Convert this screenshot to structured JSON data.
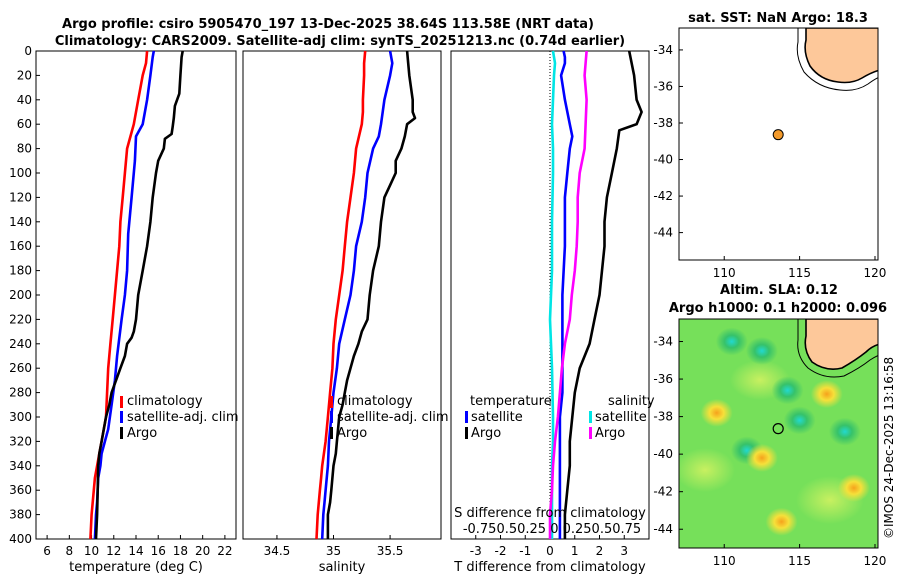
{
  "title": {
    "line1": "Argo profile: csiro 5905470_197 13-Dec-2025 38.64S 113.58E (NRT data)",
    "line2": "Climatology: CARS2009. Satellite-adj clim: synTS_20251213.nc (0.74d earlier)"
  },
  "stamp": "©IMOS 24-Dec-2025 13:16:58",
  "colors": {
    "climatology": "#ff0000",
    "satellite": "#0000ff",
    "argo": "#000000",
    "sat_salinity": "#00e5e5",
    "argo_salinity": "#ff00ff",
    "land": "#fdc89a",
    "float": "#f39a2b"
  },
  "chart_data": [
    {
      "id": "temperature",
      "type": "line",
      "xlabel": "temperature (deg C)",
      "ylabel": "",
      "xlim": [
        5,
        23
      ],
      "ylim": [
        400,
        0
      ],
      "xticks": [
        6,
        8,
        10,
        12,
        14,
        16,
        18,
        20,
        22
      ],
      "yticks": [
        0,
        20,
        40,
        60,
        80,
        100,
        120,
        140,
        160,
        180,
        200,
        220,
        240,
        260,
        280,
        300,
        320,
        340,
        360,
        380,
        400
      ],
      "legend": [
        "climatology",
        "satellite-adj. clim",
        "Argo"
      ],
      "series": [
        {
          "name": "climatology",
          "color": "#ff0000",
          "x": [
            15.0,
            14.9,
            14.6,
            14.2,
            13.8,
            13.2,
            13.0,
            12.8,
            12.6,
            12.5,
            12.3,
            12.1,
            11.9,
            11.7,
            11.5,
            11.4,
            11.3,
            11.1,
            10.9,
            10.7,
            10.5,
            10.3,
            10.2,
            10.1,
            10.0,
            9.95,
            9.9
          ],
          "y": [
            0,
            10,
            20,
            40,
            60,
            80,
            100,
            120,
            140,
            160,
            180,
            200,
            220,
            240,
            260,
            280,
            300,
            310,
            320,
            330,
            340,
            350,
            360,
            370,
            380,
            390,
            400
          ]
        },
        {
          "name": "satellite-adj. clim",
          "color": "#0000ff",
          "x": [
            15.6,
            15.5,
            15.3,
            15.0,
            14.7,
            14.6,
            14.0,
            13.9,
            13.6,
            13.3,
            13.2,
            13.0,
            12.7,
            12.3,
            12.1,
            11.8,
            11.5,
            11.2,
            10.9,
            10.8,
            10.6,
            10.5,
            10.4,
            10.3
          ],
          "y": [
            0,
            5,
            20,
            40,
            55,
            60,
            70,
            90,
            120,
            150,
            180,
            200,
            220,
            250,
            270,
            290,
            310,
            320,
            330,
            340,
            350,
            370,
            380,
            400
          ]
        },
        {
          "name": "Argo",
          "color": "#000000",
          "x": [
            18.2,
            18.1,
            18.0,
            17.9,
            17.5,
            17.4,
            17.3,
            17.2,
            16.6,
            16.5,
            16.0,
            15.8,
            15.5,
            15.3,
            15.0,
            14.8,
            14.6,
            14.2,
            14.1,
            14.0,
            13.8,
            13.6,
            13.2,
            13.0,
            12.6,
            12.2,
            11.8,
            11.6,
            11.3,
            11.1,
            10.9,
            10.7,
            10.6,
            10.55,
            10.5,
            10.4
          ],
          "y": [
            0,
            5,
            20,
            35,
            45,
            55,
            62,
            68,
            72,
            80,
            90,
            100,
            120,
            140,
            160,
            170,
            180,
            200,
            210,
            220,
            230,
            235,
            240,
            250,
            260,
            270,
            280,
            290,
            300,
            310,
            320,
            330,
            340,
            360,
            380,
            400
          ]
        }
      ]
    },
    {
      "id": "salinity",
      "type": "line",
      "xlabel": "salinity",
      "ylabel": "",
      "xlim": [
        34.2,
        35.95
      ],
      "ylim": [
        400,
        0
      ],
      "xticks": [
        34.5,
        35,
        35.5
      ],
      "legend": [
        "climatology",
        "satellite-adj. clim",
        "Argo"
      ],
      "series": [
        {
          "name": "climatology",
          "color": "#ff0000",
          "x": [
            35.28,
            35.27,
            35.27,
            35.26,
            35.26,
            35.25,
            35.2,
            35.18,
            35.15,
            35.12,
            35.1,
            35.08,
            35.05,
            35.02,
            35.0,
            34.99,
            34.97,
            34.95,
            34.93,
            34.9,
            34.89,
            34.88,
            34.87,
            34.86,
            34.85
          ],
          "y": [
            0,
            10,
            20,
            40,
            50,
            60,
            80,
            100,
            120,
            140,
            160,
            180,
            200,
            220,
            240,
            260,
            280,
            300,
            320,
            340,
            350,
            360,
            370,
            380,
            400
          ]
        },
        {
          "name": "satellite-adj. clim",
          "color": "#0000ff",
          "x": [
            35.5,
            35.52,
            35.5,
            35.45,
            35.42,
            35.4,
            35.35,
            35.3,
            35.28,
            35.25,
            35.2,
            35.18,
            35.15,
            35.1,
            35.05,
            35.03,
            35.0,
            34.98,
            34.96,
            34.95,
            34.93,
            34.92,
            34.91,
            34.9
          ],
          "y": [
            0,
            10,
            20,
            40,
            60,
            70,
            80,
            100,
            120,
            140,
            160,
            180,
            200,
            220,
            240,
            260,
            280,
            300,
            320,
            340,
            360,
            370,
            380,
            400
          ]
        },
        {
          "name": "Argo",
          "color": "#000000",
          "x": [
            35.65,
            35.66,
            35.67,
            35.7,
            35.7,
            35.72,
            35.65,
            35.63,
            35.6,
            35.55,
            35.55,
            35.5,
            35.45,
            35.42,
            35.4,
            35.35,
            35.32,
            35.3,
            35.25,
            35.22,
            35.18,
            35.15,
            35.12,
            35.1,
            35.08,
            35.05,
            35.03,
            35.02,
            35.0,
            34.98,
            34.97,
            34.95,
            34.95
          ],
          "y": [
            0,
            10,
            20,
            40,
            50,
            55,
            60,
            70,
            80,
            90,
            100,
            110,
            120,
            140,
            160,
            180,
            200,
            220,
            230,
            240,
            250,
            260,
            270,
            280,
            290,
            300,
            320,
            330,
            340,
            360,
            370,
            380,
            400
          ]
        }
      ]
    },
    {
      "id": "difference",
      "type": "line",
      "xlabel": "T difference from climatology",
      "top_label": "S difference from climatology",
      "xlim": [
        -4,
        4
      ],
      "ylim": [
        400,
        0
      ],
      "xticks": [
        -3,
        -2,
        -1,
        0,
        1,
        2,
        3
      ],
      "top_ticks": "-0.750.50.25 0 0.250.50.75",
      "legend_left": {
        "title": "temperature",
        "items": [
          "satellite",
          "Argo"
        ]
      },
      "legend_right": {
        "title": "salinity",
        "items": [
          "satellite",
          "Argo"
        ]
      },
      "series": [
        {
          "name": "T satellite",
          "color": "#0000ff",
          "x": [
            0.55,
            0.6,
            0.6,
            0.45,
            0.6,
            0.8,
            0.9,
            0.8,
            0.7,
            0.6,
            0.6,
            0.6,
            0.5,
            0.5,
            0.5,
            0.4,
            0.4,
            0.4,
            0.4,
            0.4,
            0.4
          ],
          "y": [
            0,
            5,
            10,
            20,
            40,
            60,
            70,
            80,
            100,
            120,
            140,
            160,
            200,
            240,
            280,
            300,
            320,
            340,
            360,
            380,
            400
          ]
        },
        {
          "name": "T Argo",
          "color": "#000000",
          "x": [
            3.2,
            3.4,
            3.5,
            3.7,
            3.5,
            2.8,
            2.7,
            2.5,
            2.3,
            2.2,
            2.2,
            2.1,
            2.0,
            1.8,
            1.6,
            1.2,
            1.0,
            0.9,
            0.8,
            0.8,
            0.7,
            0.6,
            0.6
          ],
          "y": [
            0,
            20,
            40,
            50,
            60,
            65,
            80,
            100,
            120,
            140,
            160,
            180,
            200,
            220,
            240,
            260,
            280,
            300,
            320,
            340,
            360,
            380,
            400
          ]
        },
        {
          "name": "S satellite",
          "color": "#00e5e5",
          "x": [
            0.03,
            0.05,
            0.04,
            0.03,
            0.02,
            0.03,
            0.03,
            0.02,
            0.02,
            0.0,
            0.02,
            0.03,
            0.03,
            0.02,
            0.02,
            0.02,
            0.02
          ],
          "y": [
            0,
            10,
            20,
            40,
            60,
            80,
            100,
            140,
            180,
            220,
            260,
            300,
            320,
            340,
            360,
            380,
            400
          ]
        },
        {
          "name": "S Argo",
          "color": "#ff00ff",
          "x": [
            0.37,
            0.36,
            0.35,
            0.37,
            0.36,
            0.35,
            0.3,
            0.28,
            0.28,
            0.27,
            0.25,
            0.22,
            0.2,
            0.15,
            0.12,
            0.1,
            0.08,
            0.05,
            0.03,
            0.02,
            0.0,
            0.0
          ],
          "y": [
            0,
            10,
            20,
            40,
            60,
            80,
            100,
            120,
            140,
            160,
            180,
            200,
            220,
            240,
            260,
            280,
            300,
            320,
            340,
            360,
            380,
            400
          ]
        }
      ]
    },
    {
      "id": "sst_map",
      "type": "map",
      "title": "sat. SST: NaN Argo: 18.3",
      "xlim": [
        107,
        120.2
      ],
      "ylim": [
        -45.5,
        -32.8
      ],
      "xticks": [
        110,
        115,
        120
      ],
      "yticks": [
        -34,
        -36,
        -38,
        -40,
        -42,
        -44
      ],
      "float": {
        "lon": 113.58,
        "lat": -38.64
      }
    },
    {
      "id": "sla_map",
      "type": "heatmap",
      "title": "Altim. SLA: 0.12",
      "subtitle": "Argo h1000: 0.1 h2000: 0.096",
      "xlim": [
        107,
        120.2
      ],
      "ylim": [
        -45,
        -32.8
      ],
      "xticks": [
        110,
        115,
        120
      ],
      "yticks": [
        -34,
        -36,
        -38,
        -40,
        -42,
        -44
      ],
      "float": {
        "lon": 113.58,
        "lat": -38.64
      },
      "blobs": [
        {
          "lon": 110.5,
          "lat": -34.0,
          "kind": "low"
        },
        {
          "lon": 112.5,
          "lat": -34.5,
          "kind": "low"
        },
        {
          "lon": 114.2,
          "lat": -36.6,
          "kind": "low"
        },
        {
          "lon": 115.0,
          "lat": -38.2,
          "kind": "low"
        },
        {
          "lon": 118.0,
          "lat": -38.8,
          "kind": "low"
        },
        {
          "lon": 111.5,
          "lat": -39.8,
          "kind": "low"
        },
        {
          "lon": 116.8,
          "lat": -36.8,
          "kind": "high"
        },
        {
          "lon": 109.5,
          "lat": -37.8,
          "kind": "high"
        },
        {
          "lon": 112.5,
          "lat": -40.2,
          "kind": "high"
        },
        {
          "lon": 113.8,
          "lat": -43.6,
          "kind": "high"
        },
        {
          "lon": 118.6,
          "lat": -41.8,
          "kind": "high"
        }
      ]
    }
  ]
}
